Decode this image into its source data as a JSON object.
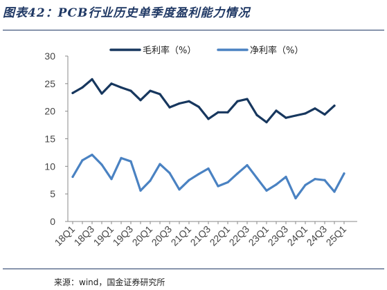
{
  "figure": {
    "title": "图表42：PCB行业历史单季度盈利能力情况",
    "source": "来源：wind，国金证券研究所"
  },
  "chart_data": {
    "type": "line",
    "title": "图表42：PCB行业历史单季度盈利能力情况",
    "xlabel": "",
    "ylabel": "",
    "ylim": [
      0,
      30
    ],
    "yticks": [
      0,
      5,
      10,
      15,
      20,
      25,
      30
    ],
    "x": [
      "18Q1",
      "18Q2",
      "18Q3",
      "18Q4",
      "19Q1",
      "19Q2",
      "19Q3",
      "19Q4",
      "20Q1",
      "20Q2",
      "20Q3",
      "20Q4",
      "21Q1",
      "21Q2",
      "21Q3",
      "21Q4",
      "22Q1",
      "22Q2",
      "22Q3",
      "22Q4",
      "23Q1",
      "23Q2",
      "23Q3",
      "23Q4",
      "24Q1",
      "24Q2",
      "24Q3",
      "24Q4",
      "25Q1"
    ],
    "xtick_labels": [
      "18Q1",
      "18Q3",
      "19Q1",
      "19Q3",
      "20Q1",
      "20Q3",
      "21Q1",
      "21Q3",
      "22Q1",
      "22Q3",
      "23Q1",
      "23Q3",
      "24Q1",
      "24Q3",
      "25Q1"
    ],
    "grid": false,
    "legend_position": "top",
    "series": [
      {
        "name": "毛利率（%）",
        "color": "#17375e",
        "values": [
          23.3,
          24.3,
          25.8,
          23.2,
          25.0,
          24.3,
          23.7,
          22.0,
          23.7,
          23.1,
          20.7,
          21.4,
          21.8,
          20.8,
          18.6,
          19.8,
          19.8,
          21.8,
          22.2,
          19.3,
          18.0,
          20.1,
          18.8,
          19.2,
          19.6,
          20.5,
          19.4,
          21.0,
          null
        ]
      },
      {
        "name": "净利率（%）",
        "color": "#4a82c2",
        "values": [
          8.1,
          11.1,
          12.1,
          10.3,
          7.7,
          11.5,
          10.9,
          5.6,
          7.4,
          10.4,
          8.8,
          5.8,
          7.5,
          8.6,
          9.6,
          6.4,
          7.1,
          8.7,
          10.2,
          7.9,
          5.6,
          6.7,
          8.1,
          4.2,
          6.6,
          7.7,
          7.5,
          5.4,
          8.7
        ]
      }
    ]
  }
}
